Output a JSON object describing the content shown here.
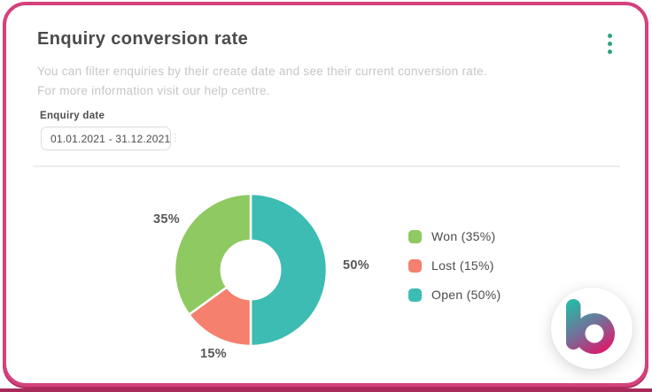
{
  "card": {
    "title": "Enquiry conversion rate",
    "description_line1": "You can filter enquiries by their create date and see their current conversion rate.",
    "description_line2": "For more information visit our help centre.",
    "filter": {
      "label": "Enquiry date",
      "value": "01.01.2021 - 31.12.2021"
    }
  },
  "chart_data": {
    "type": "pie",
    "subtype": "donut",
    "categories": [
      "Won",
      "Lost",
      "Open"
    ],
    "values": [
      35,
      15,
      50
    ],
    "unit": "%",
    "colors": {
      "won": "#8fc961",
      "lost": "#f5806d",
      "open": "#3cbcb2"
    },
    "slice_labels": {
      "won": "35%",
      "lost": "15%",
      "open": "50%"
    },
    "legend": [
      {
        "label": "Won (35%)",
        "color": "#8fc961"
      },
      {
        "label": "Lost (15%)",
        "color": "#f5806d"
      },
      {
        "label": "Open (50%)",
        "color": "#3cbcb2"
      }
    ],
    "legend_position": "right",
    "draw_order_from_top_clockwise": [
      "Open",
      "Lost",
      "Won"
    ],
    "donut_hole_ratio": 0.38
  },
  "colors": {
    "card_border": "#d5417d",
    "menu_dots": "#27a57c",
    "bottom_strip": "#a82a5b"
  },
  "logo": {
    "letter": "b",
    "gradient_start": "#2cb4a4",
    "gradient_mid": "#73709a",
    "gradient_end": "#e31368"
  }
}
